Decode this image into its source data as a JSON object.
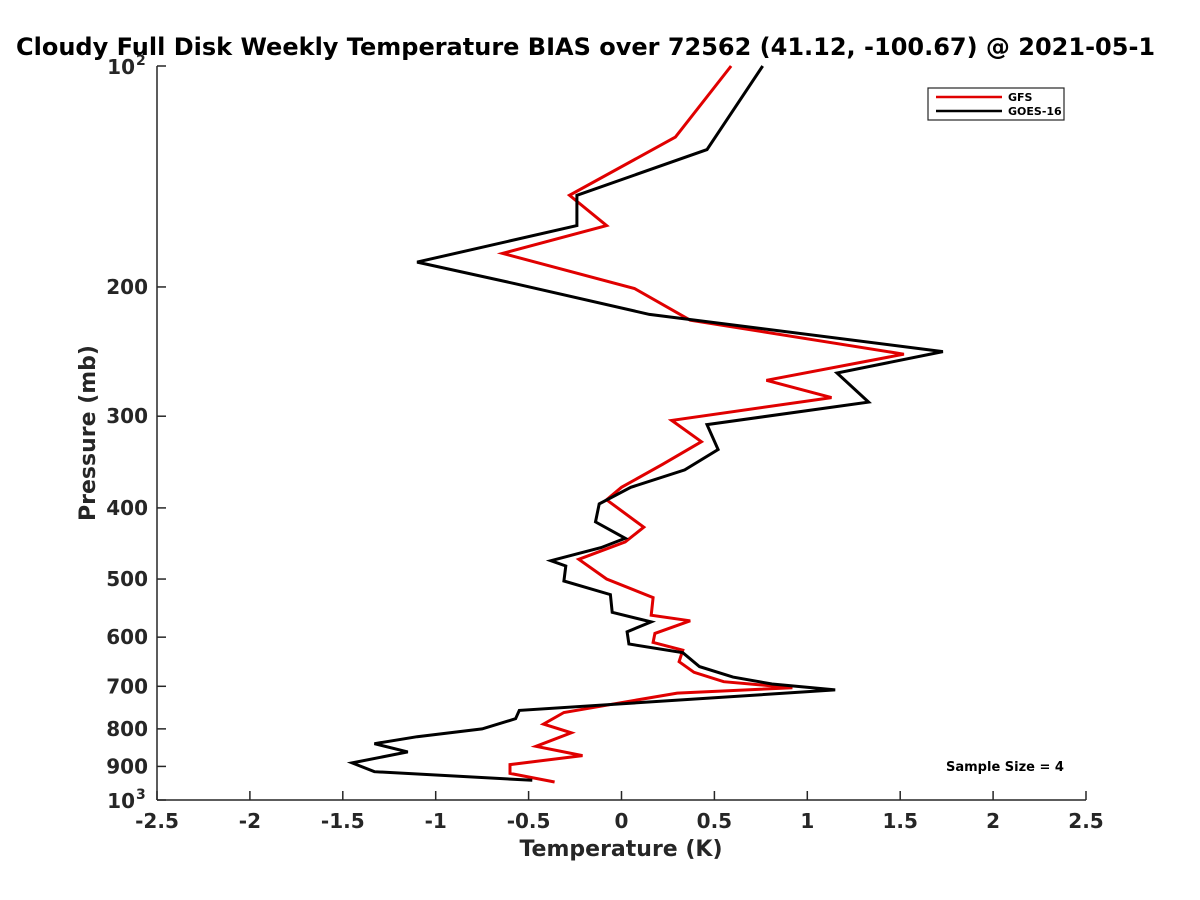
{
  "chart_data": {
    "type": "line",
    "title": "Cloudy Full Disk Weekly Temperature BIAS over 72562 (41.12, -100.67) @ 2021-05-1",
    "xlabel": "Temperature (K)",
    "ylabel": "Pressure (mb)",
    "xlim": [
      -2.5,
      2.5
    ],
    "ylim": [
      100,
      1000
    ],
    "y_scale": "log",
    "y_reversed": true,
    "grid": false,
    "legend_position": "top-right",
    "x_ticks": [
      -2.5,
      -2,
      -1.5,
      -1,
      -0.5,
      0,
      0.5,
      1,
      1.5,
      2,
      2.5
    ],
    "x_tick_labels": [
      "-2.5",
      "-2",
      "-1.5",
      "-1",
      "-0.5",
      "0",
      "0.5",
      "1",
      "1.5",
      "2",
      "2.5"
    ],
    "y_ticks": [
      {
        "value": 100,
        "base": "10",
        "exp": "2"
      },
      {
        "value": 200,
        "label": "200"
      },
      {
        "value": 300,
        "label": "300"
      },
      {
        "value": 400,
        "label": "400"
      },
      {
        "value": 500,
        "label": "500"
      },
      {
        "value": 600,
        "label": "600"
      },
      {
        "value": 700,
        "label": "700"
      },
      {
        "value": 800,
        "label": "800"
      },
      {
        "value": 900,
        "label": "900"
      },
      {
        "value": 1000,
        "base": "10",
        "exp": "3"
      }
    ],
    "series": [
      {
        "name": "GFS",
        "color": "#e00000",
        "points": [
          [
            0.59,
            100
          ],
          [
            0.29,
            125
          ],
          [
            -0.28,
            150
          ],
          [
            -0.08,
            165
          ],
          [
            -0.64,
            180
          ],
          [
            0.07,
            201
          ],
          [
            0.37,
            222
          ],
          [
            1.52,
            247
          ],
          [
            0.78,
            268
          ],
          [
            1.13,
            283
          ],
          [
            0.27,
            304
          ],
          [
            0.43,
            325
          ],
          [
            0.22,
            349
          ],
          [
            0.0,
            375
          ],
          [
            -0.08,
            390
          ],
          [
            0.12,
            425
          ],
          [
            0.02,
            445
          ],
          [
            -0.23,
            470
          ],
          [
            -0.08,
            500
          ],
          [
            0.17,
            530
          ],
          [
            0.16,
            560
          ],
          [
            0.37,
            570
          ],
          [
            0.18,
            593
          ],
          [
            0.17,
            610
          ],
          [
            0.33,
            625
          ],
          [
            0.31,
            648
          ],
          [
            0.39,
            670
          ],
          [
            0.55,
            690
          ],
          [
            0.92,
            703
          ],
          [
            0.3,
            715
          ],
          [
            -0.31,
            760
          ],
          [
            -0.42,
            788
          ],
          [
            -0.27,
            810
          ],
          [
            -0.46,
            845
          ],
          [
            -0.21,
            870
          ],
          [
            -0.6,
            895
          ],
          [
            -0.6,
            920
          ],
          [
            -0.36,
            945
          ]
        ]
      },
      {
        "name": "GOES-16",
        "color": "#000000",
        "points": [
          [
            0.76,
            100
          ],
          [
            0.46,
            130
          ],
          [
            -0.24,
            150
          ],
          [
            -0.24,
            165
          ],
          [
            -1.1,
            185
          ],
          [
            -0.57,
            198
          ],
          [
            0.15,
            218
          ],
          [
            1.73,
            245
          ],
          [
            1.16,
            262
          ],
          [
            1.33,
            287
          ],
          [
            0.46,
            308
          ],
          [
            0.52,
            333
          ],
          [
            0.34,
            355
          ],
          [
            0.05,
            375
          ],
          [
            -0.12,
            395
          ],
          [
            -0.14,
            418
          ],
          [
            0.02,
            440
          ],
          [
            -0.11,
            453
          ],
          [
            -0.38,
            472
          ],
          [
            -0.3,
            480
          ],
          [
            -0.31,
            503
          ],
          [
            -0.06,
            525
          ],
          [
            -0.05,
            555
          ],
          [
            0.16,
            572
          ],
          [
            0.03,
            590
          ],
          [
            0.04,
            613
          ],
          [
            0.33,
            630
          ],
          [
            0.42,
            658
          ],
          [
            0.6,
            680
          ],
          [
            0.81,
            695
          ],
          [
            1.15,
            708
          ],
          [
            -0.55,
            755
          ],
          [
            -0.57,
            775
          ],
          [
            -0.75,
            800
          ],
          [
            -1.1,
            820
          ],
          [
            -1.33,
            838
          ],
          [
            -1.15,
            860
          ],
          [
            -1.45,
            890
          ],
          [
            -1.33,
            915
          ],
          [
            -0.48,
            940
          ]
        ]
      }
    ],
    "annotation": "Sample Size = 4"
  }
}
